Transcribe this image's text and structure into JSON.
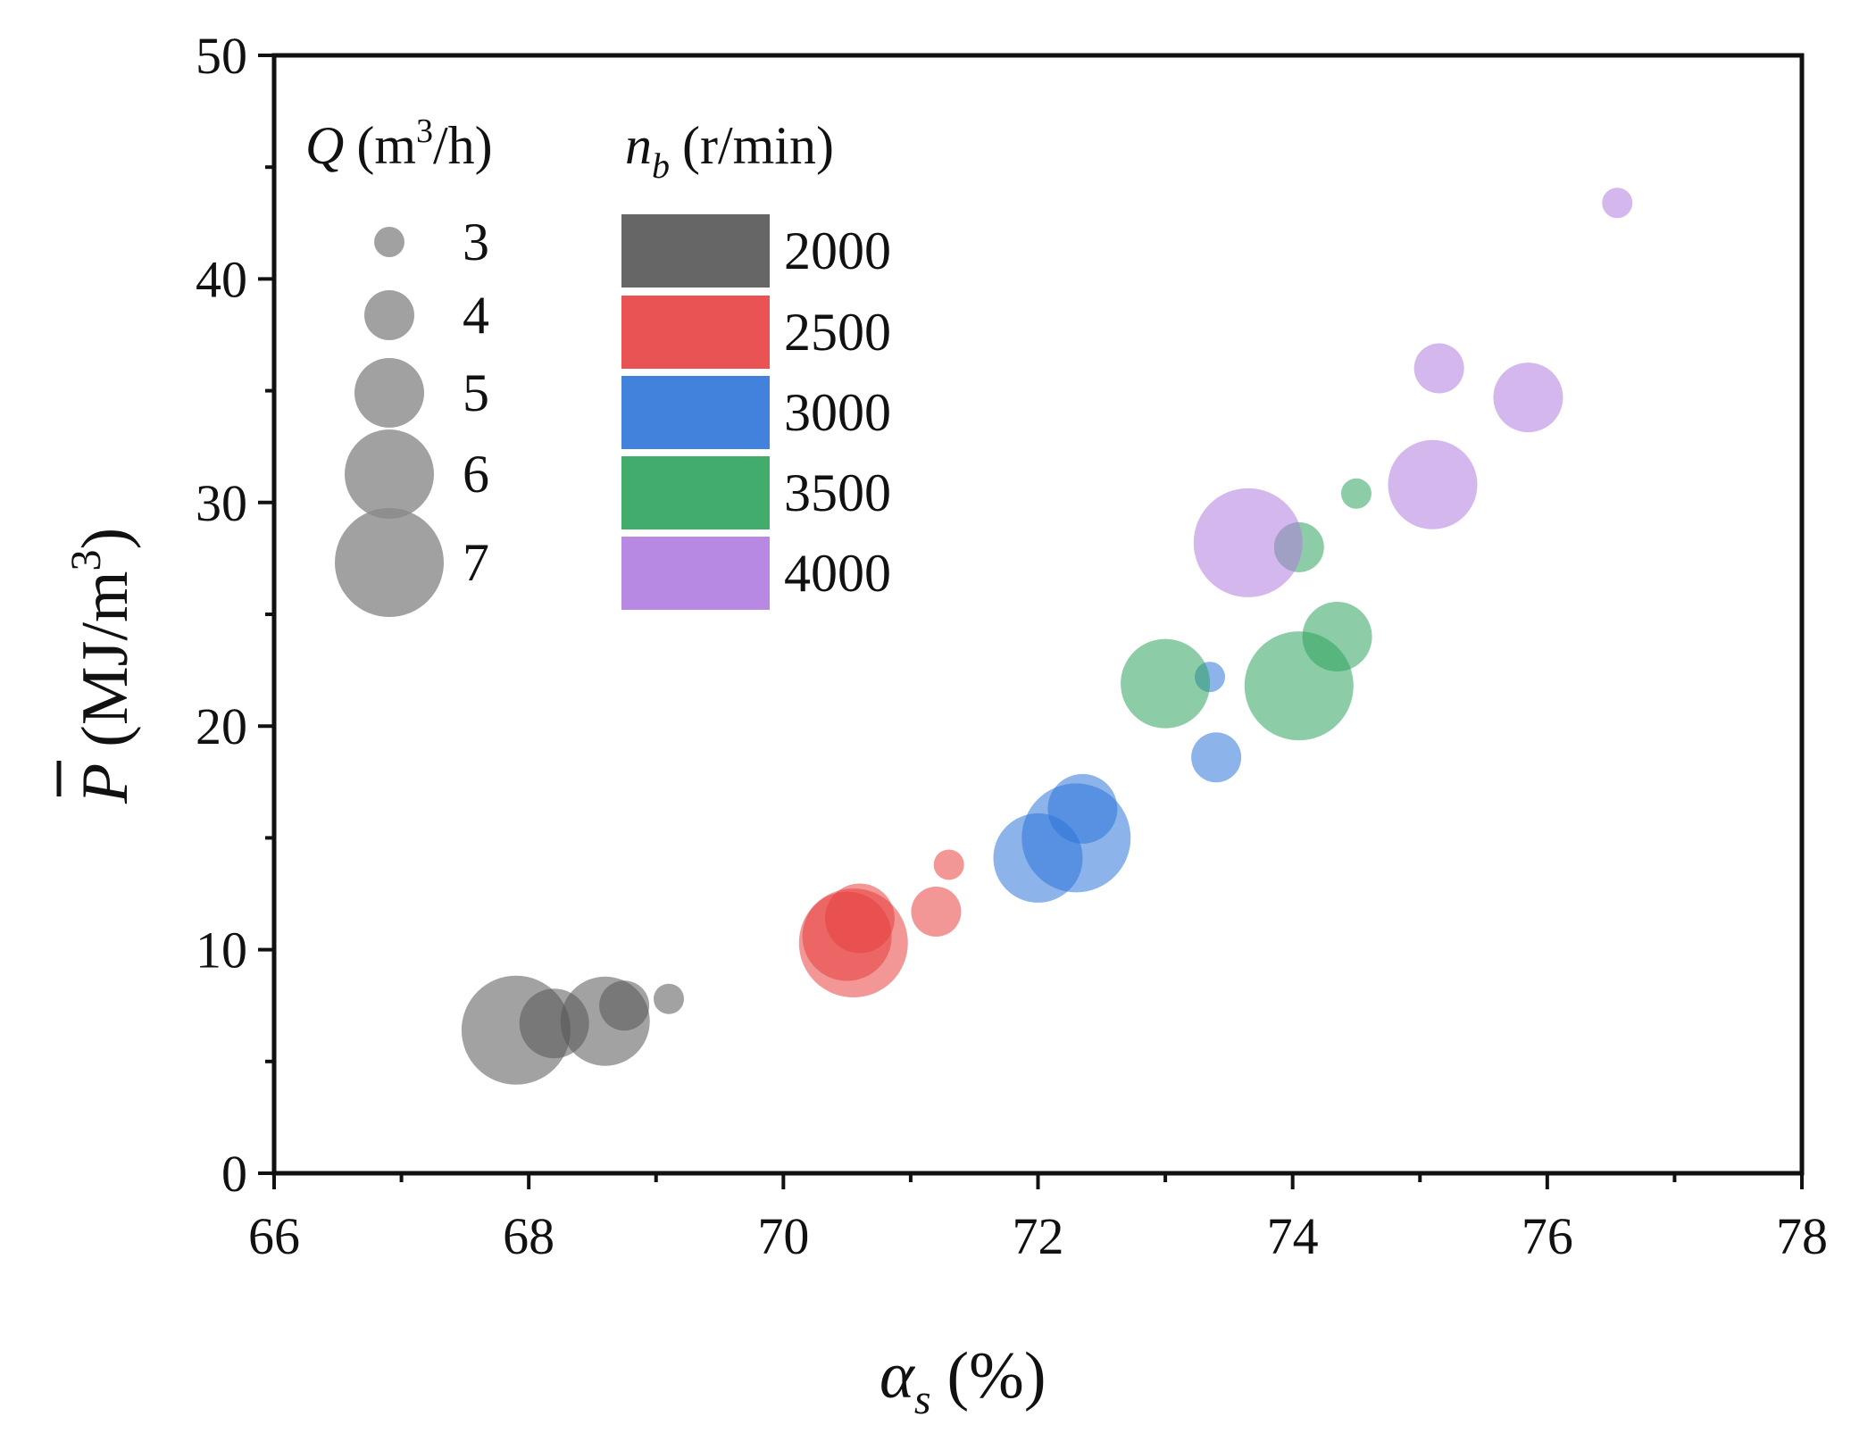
{
  "chart_data": {
    "type": "scatter",
    "xlabel_symbol": "α",
    "xlabel_subscript": "s",
    "xlabel_unit": "(%)",
    "ylabel_symbol": "P",
    "ylabel_unit": "(MJ/m",
    "ylabel_unit_sup": "3",
    "ylabel_unit_close": ")",
    "xlim": [
      66,
      78
    ],
    "ylim": [
      0,
      50
    ],
    "xticks": [
      66,
      68,
      70,
      72,
      74,
      76,
      78
    ],
    "yticks": [
      0,
      10,
      20,
      30,
      40,
      50
    ],
    "size_legend": {
      "title_symbol": "Q",
      "title_unit": "(m",
      "title_unit_sup": "3",
      "title_unit_close": "/h)",
      "values": [
        3,
        4,
        5,
        6,
        7
      ],
      "labels": [
        "3",
        "4",
        "5",
        "6",
        "7"
      ],
      "color": "#8a8a8a"
    },
    "color_legend": {
      "title_symbol": "n",
      "title_subscript": "b",
      "title_unit": "(r/min)",
      "labels": [
        "2000",
        "2500",
        "3000",
        "3500",
        "4000"
      ]
    },
    "series": [
      {
        "name": "2000",
        "color": "#555555",
        "points": [
          {
            "x": 67.9,
            "y": 6.4,
            "q": 7
          },
          {
            "x": 68.2,
            "y": 6.7,
            "q": 5
          },
          {
            "x": 68.6,
            "y": 6.8,
            "q": 6
          },
          {
            "x": 68.75,
            "y": 7.5,
            "q": 4
          },
          {
            "x": 69.1,
            "y": 7.8,
            "q": 3
          }
        ]
      },
      {
        "name": "2500",
        "color": "#e84040",
        "points": [
          {
            "x": 70.55,
            "y": 10.3,
            "q": 7
          },
          {
            "x": 70.6,
            "y": 11.4,
            "q": 5
          },
          {
            "x": 71.2,
            "y": 11.7,
            "q": 4
          },
          {
            "x": 71.3,
            "y": 13.8,
            "q": 3
          },
          {
            "x": 70.5,
            "y": 10.6,
            "q": 6
          }
        ]
      },
      {
        "name": "3000",
        "color": "#2e74d8",
        "points": [
          {
            "x": 72.3,
            "y": 15.0,
            "q": 7
          },
          {
            "x": 72.0,
            "y": 14.1,
            "q": 6
          },
          {
            "x": 72.35,
            "y": 16.3,
            "q": 5
          },
          {
            "x": 73.4,
            "y": 18.6,
            "q": 4
          },
          {
            "x": 73.35,
            "y": 22.2,
            "q": 3
          }
        ]
      },
      {
        "name": "3500",
        "color": "#2ea35c",
        "points": [
          {
            "x": 74.05,
            "y": 21.8,
            "q": 7
          },
          {
            "x": 73.0,
            "y": 21.9,
            "q": 6
          },
          {
            "x": 74.35,
            "y": 24.0,
            "q": 5
          },
          {
            "x": 74.05,
            "y": 28.0,
            "q": 4
          },
          {
            "x": 74.5,
            "y": 30.4,
            "q": 3
          }
        ]
      },
      {
        "name": "4000",
        "color": "#b07cdf",
        "points": [
          {
            "x": 73.65,
            "y": 28.2,
            "q": 7
          },
          {
            "x": 75.1,
            "y": 30.8,
            "q": 6
          },
          {
            "x": 75.85,
            "y": 34.7,
            "q": 5
          },
          {
            "x": 75.15,
            "y": 36.0,
            "q": 4
          },
          {
            "x": 76.55,
            "y": 43.4,
            "q": 3
          }
        ]
      }
    ]
  }
}
